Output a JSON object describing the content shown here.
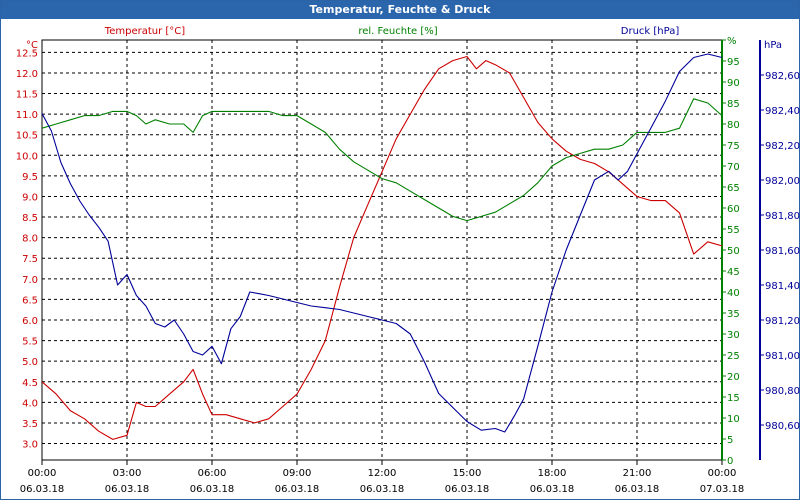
{
  "window": {
    "title": "Temperatur, Feuchte & Druck"
  },
  "colors": {
    "temperature": "#cc0000",
    "humidity": "#008000",
    "pressure": "#000099",
    "titlebar": "#2b66ad",
    "grid": "#000000"
  },
  "chart_data": {
    "type": "line",
    "title": "Temperatur, Feuchte & Druck",
    "grid": true,
    "x_ticks": [
      {
        "time": "00:00",
        "date": "06.03.18"
      },
      {
        "time": "03:00",
        "date": "06.03.18"
      },
      {
        "time": "06:00",
        "date": "06.03.18"
      },
      {
        "time": "09:00",
        "date": "06.03.18"
      },
      {
        "time": "12:00",
        "date": "06.03.18"
      },
      {
        "time": "15:00",
        "date": "06.03.18"
      },
      {
        "time": "18:00",
        "date": "06.03.18"
      },
      {
        "time": "21:00",
        "date": "06.03.18"
      },
      {
        "time": "00:00",
        "date": "07.03.18"
      }
    ],
    "axes": {
      "temperature": {
        "label": "Temperatur [°C]",
        "unit": "°C",
        "range": [
          2.6,
          12.8
        ],
        "ticks": [
          "3.0",
          "3.5",
          "4.0",
          "4.5",
          "5.0",
          "5.5",
          "6.0",
          "6.5",
          "7.0",
          "7.5",
          "8.0",
          "8.5",
          "9.0",
          "9.5",
          "10.0",
          "10.5",
          "11.0",
          "11.5",
          "12.0",
          "12.5"
        ]
      },
      "humidity": {
        "label": "rel. Feuchte [%]",
        "unit": "%",
        "range": [
          0,
          100
        ],
        "ticks": [
          "0",
          "5",
          "10",
          "15",
          "20",
          "25",
          "30",
          "35",
          "40",
          "45",
          "50",
          "55",
          "60",
          "65",
          "70",
          "75",
          "80",
          "85",
          "90",
          "95",
          "%"
        ]
      },
      "pressure": {
        "label": "Druck [hPa]",
        "unit": "hPa",
        "range": [
          980.4,
          982.8
        ],
        "ticks": [
          "980,60",
          "980,80",
          "981,00",
          "981,20",
          "981,40",
          "981,60",
          "981,80",
          "982,00",
          "982,20",
          "982,40",
          "982,60"
        ]
      }
    },
    "series": [
      {
        "name": "Temperatur [°C]",
        "axis": "temperature",
        "x": [
          "00:00",
          "00:30",
          "01:00",
          "01:30",
          "02:00",
          "02:30",
          "03:00",
          "03:20",
          "03:40",
          "04:00",
          "04:30",
          "05:00",
          "05:20",
          "05:40",
          "06:00",
          "06:30",
          "07:00",
          "07:30",
          "08:00",
          "08:30",
          "09:00",
          "09:30",
          "10:00",
          "10:30",
          "11:00",
          "11:30",
          "12:00",
          "12:30",
          "13:00",
          "13:30",
          "14:00",
          "14:30",
          "15:00",
          "15:20",
          "15:40",
          "16:00",
          "16:30",
          "17:00",
          "17:30",
          "18:00",
          "18:30",
          "19:00",
          "19:30",
          "20:00",
          "20:30",
          "21:00",
          "21:30",
          "22:00",
          "22:30",
          "23:00",
          "23:30",
          "24:00"
        ],
        "values": [
          4.5,
          4.2,
          3.8,
          3.6,
          3.3,
          3.1,
          3.2,
          4.0,
          3.9,
          3.9,
          4.2,
          4.5,
          4.8,
          4.2,
          3.7,
          3.7,
          3.6,
          3.5,
          3.6,
          3.9,
          4.2,
          4.8,
          5.5,
          6.8,
          8.0,
          8.8,
          9.6,
          10.4,
          11.0,
          11.6,
          12.1,
          12.3,
          12.4,
          12.1,
          12.3,
          12.2,
          12.0,
          11.4,
          10.8,
          10.4,
          10.1,
          9.9,
          9.8,
          9.6,
          9.3,
          9.0,
          8.9,
          8.9,
          8.6,
          7.6,
          7.9,
          7.8
        ]
      },
      {
        "name": "rel. Feuchte [%]",
        "axis": "humidity",
        "x": [
          "00:00",
          "00:30",
          "01:00",
          "01:30",
          "02:00",
          "02:30",
          "03:00",
          "03:20",
          "03:40",
          "04:00",
          "04:30",
          "05:00",
          "05:20",
          "05:40",
          "06:00",
          "06:30",
          "07:00",
          "07:30",
          "08:00",
          "08:30",
          "09:00",
          "09:30",
          "10:00",
          "10:30",
          "11:00",
          "11:30",
          "12:00",
          "12:30",
          "13:00",
          "13:30",
          "14:00",
          "14:30",
          "15:00",
          "15:30",
          "16:00",
          "16:30",
          "17:00",
          "17:30",
          "18:00",
          "18:30",
          "19:00",
          "19:30",
          "20:00",
          "20:30",
          "21:00",
          "21:30",
          "22:00",
          "22:30",
          "23:00",
          "23:30",
          "24:00"
        ],
        "values": [
          79,
          80,
          81,
          82,
          82,
          83,
          83,
          82,
          80,
          81,
          80,
          80,
          78,
          82,
          83,
          83,
          83,
          83,
          83,
          82,
          82,
          80,
          78,
          74,
          71,
          69,
          67,
          66,
          64,
          62,
          60,
          58,
          57,
          58,
          59,
          61,
          63,
          66,
          70,
          72,
          73,
          74,
          74,
          75,
          78,
          78,
          78,
          79,
          86,
          85,
          82
        ]
      },
      {
        "name": "Druck [hPa]",
        "axis": "pressure",
        "x": [
          "00:00",
          "00:20",
          "00:40",
          "01:00",
          "01:20",
          "01:40",
          "02:00",
          "02:20",
          "02:40",
          "03:00",
          "03:20",
          "03:40",
          "04:00",
          "04:20",
          "04:40",
          "05:00",
          "05:20",
          "05:40",
          "06:00",
          "06:20",
          "06:40",
          "07:00",
          "07:20",
          "07:40",
          "08:00",
          "08:30",
          "09:00",
          "09:30",
          "10:00",
          "10:30",
          "11:00",
          "11:30",
          "12:00",
          "12:30",
          "13:00",
          "13:30",
          "14:00",
          "14:30",
          "15:00",
          "15:30",
          "16:00",
          "16:20",
          "16:40",
          "17:00",
          "17:30",
          "18:00",
          "18:30",
          "19:00",
          "19:30",
          "20:00",
          "20:20",
          "20:40",
          "21:00",
          "21:30",
          "22:00",
          "22:30",
          "23:00",
          "23:30",
          "24:00"
        ],
        "values": [
          982.38,
          982.28,
          982.1,
          981.98,
          981.88,
          981.8,
          981.73,
          981.65,
          981.4,
          981.46,
          981.34,
          981.28,
          981.18,
          981.16,
          981.2,
          981.12,
          981.02,
          981.0,
          981.05,
          980.95,
          981.15,
          981.22,
          981.36,
          981.35,
          981.34,
          981.32,
          981.3,
          981.28,
          981.27,
          981.26,
          981.24,
          981.22,
          981.2,
          981.18,
          981.12,
          980.96,
          980.78,
          980.7,
          980.62,
          980.57,
          980.58,
          980.56,
          980.65,
          980.75,
          981.05,
          981.36,
          981.6,
          981.8,
          982.0,
          982.05,
          982.0,
          982.05,
          982.15,
          982.3,
          982.45,
          982.62,
          982.7,
          982.72,
          982.7
        ]
      }
    ]
  }
}
